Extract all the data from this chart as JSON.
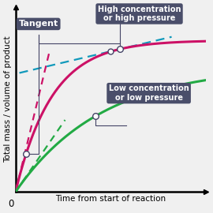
{
  "background_color": "#f0f0f0",
  "grid_color": "#c8c8d8",
  "curve_high_color": "#cc1166",
  "curve_low_color": "#22aa44",
  "tangent_line_color": "#1199bb",
  "connector_color": "#444466",
  "title_box_color": "#4a4e6a",
  "title_text_color": "#ffffff",
  "xlabel": "Time from start of reaction",
  "ylabel": "Total mass / volume of product",
  "label_high": "High concentration\nor high pressure",
  "label_low": "Low concentration\nor low pressure",
  "label_tangent": "Tangent",
  "x_max": 10,
  "y_max": 10,
  "high_A": 8.2,
  "high_k": 0.52,
  "low_A": 6.8,
  "low_k": 0.22,
  "tang_high_slope_t": 0.45,
  "tang_low_slope_t": 0.45,
  "pt1_t": 0.55,
  "pt2_t": 5.5,
  "pt3_t": 4.2,
  "teal_t1": 0.35,
  "teal_t2": 8.2
}
